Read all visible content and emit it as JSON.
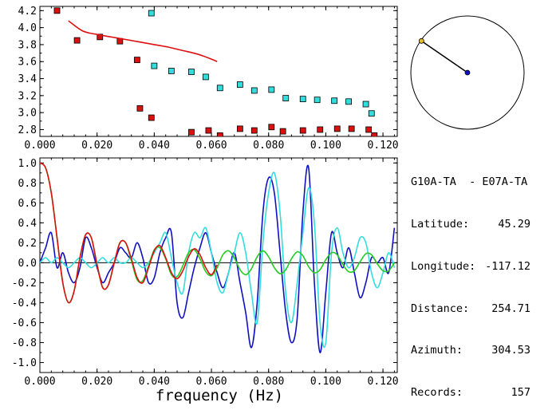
{
  "info": {
    "title": "G10A-TA  - E07A-TA",
    "rows": [
      {
        "label": "Latitude:",
        "value": "45.29"
      },
      {
        "label": "Longitude:",
        "value": "-117.12"
      },
      {
        "label": "Distance:",
        "value": "254.71"
      },
      {
        "label": "Azimuth:",
        "value": "304.53"
      },
      {
        "label": "Records:",
        "value": "157"
      }
    ]
  },
  "colors": {
    "red": "#dd1010",
    "cyan": "#33dddd",
    "blue": "#1010c0",
    "green": "#22cc22",
    "black": "#000000"
  },
  "chart_data": [
    {
      "type": "scatter",
      "xlim": [
        0.0,
        0.125
      ],
      "ylim": [
        2.72,
        4.25
      ],
      "xticks": [
        "0.000",
        "0.020",
        "0.040",
        "0.060",
        "0.080",
        "0.100",
        "0.120"
      ],
      "yticks": [
        "2.8",
        "3.0",
        "3.2",
        "3.4",
        "3.6",
        "3.8",
        "4.0",
        "4.2"
      ],
      "series": [
        {
          "color": "red",
          "kind": "points",
          "x": [
            0.006,
            0.013,
            0.021,
            0.028,
            0.034,
            0.035,
            0.039,
            0.053,
            0.059,
            0.063,
            0.07,
            0.075,
            0.081,
            0.085,
            0.092,
            0.098,
            0.104,
            0.109,
            0.115,
            0.117
          ],
          "y": [
            4.2,
            3.85,
            3.89,
            3.84,
            3.62,
            3.05,
            2.94,
            2.77,
            2.79,
            2.73,
            2.81,
            2.79,
            2.83,
            2.78,
            2.79,
            2.8,
            2.81,
            2.81,
            2.8,
            2.73
          ]
        },
        {
          "color": "cyan",
          "kind": "points",
          "x": [
            0.039,
            0.04,
            0.046,
            0.053,
            0.058,
            0.063,
            0.07,
            0.075,
            0.081,
            0.086,
            0.092,
            0.097,
            0.103,
            0.108,
            0.114,
            0.116
          ],
          "y": [
            4.17,
            3.55,
            3.49,
            3.48,
            3.42,
            3.29,
            3.33,
            3.26,
            3.27,
            3.17,
            3.16,
            3.15,
            3.14,
            3.13,
            3.1,
            2.99
          ]
        },
        {
          "color": "red",
          "kind": "line",
          "x": [
            0.01,
            0.015,
            0.02,
            0.025,
            0.03,
            0.035,
            0.04,
            0.045,
            0.05,
            0.055,
            0.06,
            0.062
          ],
          "y": [
            4.08,
            3.96,
            3.92,
            3.89,
            3.86,
            3.83,
            3.8,
            3.77,
            3.73,
            3.69,
            3.63,
            3.6
          ]
        }
      ]
    },
    {
      "type": "line",
      "xlim": [
        0.0,
        0.125
      ],
      "ylim": [
        -1.1,
        1.05
      ],
      "xlabel": "frequency (Hz)",
      "xticks": [
        "0.000",
        "0.020",
        "0.040",
        "0.060",
        "0.080",
        "0.100",
        "0.120"
      ],
      "yticks": [
        "1.0",
        "0.8",
        "0.6",
        "0.4",
        "0.2",
        "0.0",
        "-0.2",
        "-0.4",
        "-0.6",
        "-0.8",
        "-1.0"
      ],
      "zero_line": true,
      "series": [
        {
          "color": "blue",
          "x": [
            0.0,
            0.002,
            0.004,
            0.006,
            0.008,
            0.01,
            0.012,
            0.014,
            0.016,
            0.018,
            0.02,
            0.022,
            0.024,
            0.026,
            0.028,
            0.03,
            0.032,
            0.034,
            0.036,
            0.038,
            0.04,
            0.042,
            0.044,
            0.046,
            0.048,
            0.05,
            0.052,
            0.054,
            0.056,
            0.058,
            0.06,
            0.062,
            0.064,
            0.066,
            0.068,
            0.07,
            0.072,
            0.074,
            0.076,
            0.078,
            0.08,
            0.082,
            0.084,
            0.086,
            0.088,
            0.09,
            0.092,
            0.094,
            0.096,
            0.098,
            0.1,
            0.102,
            0.104,
            0.106,
            0.108,
            0.11,
            0.112,
            0.114,
            0.116,
            0.118,
            0.12,
            0.122,
            0.124
          ],
          "y": [
            0.0,
            0.15,
            0.3,
            -0.05,
            0.1,
            -0.1,
            -0.2,
            -0.05,
            0.25,
            0.15,
            -0.05,
            -0.2,
            -0.1,
            0.0,
            0.15,
            0.1,
            0.05,
            0.2,
            0.05,
            -0.2,
            -0.15,
            0.1,
            0.25,
            0.3,
            -0.4,
            -0.55,
            -0.3,
            -0.05,
            0.15,
            0.3,
            0.1,
            -0.1,
            -0.25,
            -0.1,
            0.1,
            -0.2,
            -0.5,
            -0.85,
            -0.4,
            0.5,
            0.85,
            0.7,
            0.1,
            -0.5,
            -0.8,
            -0.55,
            0.5,
            0.95,
            -0.2,
            -0.9,
            -0.3,
            0.3,
            0.1,
            -0.05,
            0.15,
            -0.1,
            -0.35,
            -0.2,
            0.05,
            0.0,
            0.05,
            -0.1,
            0.35
          ]
        },
        {
          "color": "cyan",
          "x": [
            0.0,
            0.002,
            0.004,
            0.006,
            0.008,
            0.01,
            0.012,
            0.014,
            0.016,
            0.018,
            0.02,
            0.022,
            0.024,
            0.026,
            0.028,
            0.03,
            0.032,
            0.034,
            0.036,
            0.038,
            0.04,
            0.042,
            0.044,
            0.046,
            0.048,
            0.05,
            0.052,
            0.054,
            0.056,
            0.058,
            0.06,
            0.062,
            0.064,
            0.066,
            0.068,
            0.07,
            0.072,
            0.074,
            0.076,
            0.078,
            0.08,
            0.082,
            0.084,
            0.086,
            0.088,
            0.09,
            0.092,
            0.094,
            0.096,
            0.098,
            0.1,
            0.102,
            0.104,
            0.106,
            0.108,
            0.11,
            0.112,
            0.114,
            0.116,
            0.118,
            0.12,
            0.122,
            0.124
          ],
          "y": [
            0.0,
            0.05,
            0.0,
            0.05,
            0.0,
            -0.05,
            0.0,
            0.05,
            0.0,
            -0.05,
            0.0,
            0.05,
            0.0,
            0.05,
            0.0,
            0.0,
            0.05,
            0.0,
            -0.05,
            0.0,
            0.1,
            0.2,
            0.3,
            0.05,
            -0.2,
            -0.3,
            0.1,
            0.3,
            0.25,
            0.35,
            0.1,
            -0.2,
            -0.3,
            -0.1,
            0.1,
            0.3,
            0.1,
            -0.3,
            -0.6,
            0.2,
            0.7,
            0.9,
            0.5,
            -0.3,
            -0.6,
            -0.2,
            0.3,
            0.75,
            0.4,
            -0.6,
            -0.8,
            0.1,
            0.35,
            0.1,
            -0.05,
            0.05,
            0.25,
            0.2,
            -0.1,
            -0.25,
            -0.1,
            0.1,
            -0.05
          ]
        },
        {
          "color": "green",
          "x": [
            0.0,
            0.002,
            0.004,
            0.006,
            0.008,
            0.01,
            0.012,
            0.014,
            0.016,
            0.018,
            0.02,
            0.022,
            0.024,
            0.026,
            0.028,
            0.03,
            0.032,
            0.034,
            0.036,
            0.038,
            0.04,
            0.042,
            0.044,
            0.046,
            0.048,
            0.05,
            0.052,
            0.054,
            0.056,
            0.058,
            0.06,
            0.062,
            0.064,
            0.066,
            0.068,
            0.07,
            0.072,
            0.074,
            0.076,
            0.078,
            0.08,
            0.082,
            0.084,
            0.086,
            0.088,
            0.09,
            0.092,
            0.094,
            0.096,
            0.098,
            0.1,
            0.102,
            0.104,
            0.106,
            0.108,
            0.11,
            0.112,
            0.114,
            0.116,
            0.118,
            0.12,
            0.122,
            0.124
          ],
          "y": [
            1.0,
            0.95,
            0.7,
            0.25,
            -0.2,
            -0.4,
            -0.28,
            0.05,
            0.28,
            0.25,
            -0.02,
            -0.25,
            -0.22,
            0.0,
            0.2,
            0.2,
            0.02,
            -0.17,
            -0.18,
            -0.03,
            0.13,
            0.15,
            0.04,
            -0.12,
            -0.14,
            -0.03,
            0.1,
            0.13,
            0.04,
            -0.09,
            -0.13,
            -0.05,
            0.08,
            0.12,
            0.05,
            -0.07,
            -0.12,
            -0.06,
            0.06,
            0.12,
            0.06,
            -0.05,
            -0.11,
            -0.07,
            0.04,
            0.11,
            0.07,
            -0.04,
            -0.1,
            -0.07,
            0.03,
            0.1,
            0.08,
            -0.02,
            -0.09,
            -0.08,
            0.01,
            0.09,
            0.08,
            -0.01,
            -0.08,
            -0.08,
            0.0
          ]
        },
        {
          "color": "red",
          "x": [
            0.0,
            0.002,
            0.004,
            0.006,
            0.008,
            0.01,
            0.012,
            0.014,
            0.016,
            0.018,
            0.02,
            0.022,
            0.024,
            0.026,
            0.028,
            0.03,
            0.032,
            0.034,
            0.036,
            0.038,
            0.04,
            0.042,
            0.044,
            0.046,
            0.048,
            0.05,
            0.052,
            0.054,
            0.056,
            0.058,
            0.06,
            0.062
          ],
          "y": [
            1.0,
            0.95,
            0.7,
            0.25,
            -0.2,
            -0.4,
            -0.28,
            0.05,
            0.28,
            0.25,
            -0.02,
            -0.25,
            -0.22,
            0.0,
            0.2,
            0.2,
            0.04,
            -0.15,
            -0.2,
            -0.05,
            0.12,
            0.17,
            0.05,
            -0.1,
            -0.16,
            -0.08,
            0.06,
            0.14,
            0.08,
            -0.05,
            -0.12,
            -0.02
          ]
        }
      ]
    },
    {
      "type": "diagram",
      "circle": true,
      "azimuth_deg": 304.53,
      "center_point_color": "blue",
      "end_point_color": "yellow"
    }
  ]
}
